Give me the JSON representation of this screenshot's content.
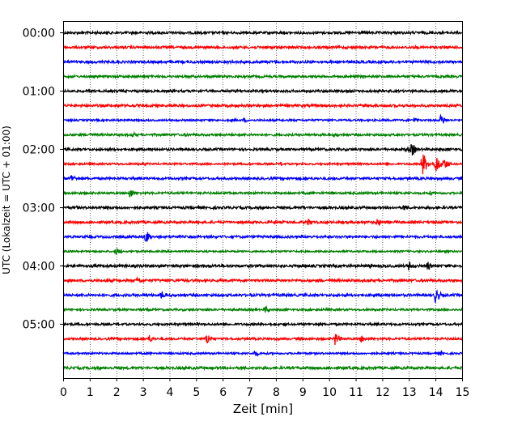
{
  "chart_data": {
    "type": "line",
    "subtype": "helicorder-seismogram",
    "title": "",
    "xlabel": "Zeit  [min]",
    "ylabel": "UTC (Lokalzeit = UTC + 01:00)",
    "xlim": [
      0,
      15
    ],
    "x_ticks": [
      "0",
      "1",
      "2",
      "3",
      "4",
      "5",
      "6",
      "7",
      "8",
      "9",
      "10",
      "11",
      "12",
      "13",
      "14",
      "15"
    ],
    "y_tick_labels": [
      "00:00",
      "01:00",
      "02:00",
      "03:00",
      "04:00",
      "05:00"
    ],
    "y_tick_rows": [
      0,
      4,
      8,
      12,
      16,
      20
    ],
    "rows_count": 24,
    "row_interval_minutes": 15,
    "grid": "vertical dotted lines at each minute",
    "trace_colors": [
      "#000000",
      "#ff0000",
      "#0000ff",
      "#008000"
    ],
    "events": [
      {
        "row": 0,
        "time": "00:00",
        "minute": 6.0,
        "amp": 0.25
      },
      {
        "row": 2,
        "time": "00:30",
        "minute": 0.3,
        "amp": 0.15
      },
      {
        "row": 5,
        "time": "01:15",
        "minute": 0.0,
        "amp": 0.0
      },
      {
        "row": 6,
        "time": "01:30",
        "minute": 6.8,
        "amp": 0.3
      },
      {
        "row": 6,
        "time": "01:30",
        "minute": 13.2,
        "amp": 0.4
      },
      {
        "row": 6,
        "time": "01:30",
        "minute": 14.2,
        "amp": 0.7
      },
      {
        "row": 7,
        "time": "01:45",
        "minute": 1.0,
        "amp": 0.3
      },
      {
        "row": 7,
        "time": "01:45",
        "minute": 2.6,
        "amp": 0.4
      },
      {
        "row": 7,
        "time": "01:45",
        "minute": 4.6,
        "amp": 0.3
      },
      {
        "row": 7,
        "time": "01:45",
        "minute": 10.2,
        "amp": 0.35
      },
      {
        "row": 8,
        "time": "02:00",
        "minute": 12.9,
        "amp": 0.45
      },
      {
        "row": 8,
        "time": "02:00",
        "minute": 13.1,
        "amp": 0.9
      },
      {
        "row": 9,
        "time": "02:15",
        "minute": 3.0,
        "amp": 0.25
      },
      {
        "row": 9,
        "time": "02:15",
        "minute": 8.2,
        "amp": 0.3
      },
      {
        "row": 9,
        "time": "02:15",
        "minute": 13.5,
        "amp": 1.6
      },
      {
        "row": 9,
        "time": "02:15",
        "minute": 14.0,
        "amp": 1.3
      },
      {
        "row": 9,
        "time": "02:15",
        "minute": 14.3,
        "amp": 0.8
      },
      {
        "row": 10,
        "time": "02:30",
        "minute": 0.3,
        "amp": 0.6
      },
      {
        "row": 11,
        "time": "02:45",
        "minute": 2.5,
        "amp": 0.7
      },
      {
        "row": 11,
        "time": "02:45",
        "minute": 13.8,
        "amp": 0.3
      },
      {
        "row": 12,
        "time": "03:00",
        "minute": 0.5,
        "amp": 0.25
      },
      {
        "row": 12,
        "time": "03:00",
        "minute": 9.0,
        "amp": 0.25
      },
      {
        "row": 12,
        "time": "03:00",
        "minute": 12.8,
        "amp": 0.45
      },
      {
        "row": 13,
        "time": "03:15",
        "minute": 9.2,
        "amp": 0.5
      },
      {
        "row": 13,
        "time": "03:15",
        "minute": 11.8,
        "amp": 0.55
      },
      {
        "row": 14,
        "time": "03:30",
        "minute": 3.1,
        "amp": 0.9
      },
      {
        "row": 14,
        "time": "03:30",
        "minute": 14.0,
        "amp": 0.25
      },
      {
        "row": 15,
        "time": "03:45",
        "minute": 2.0,
        "amp": 0.5
      },
      {
        "row": 16,
        "time": "04:00",
        "minute": 11.5,
        "amp": 0.35
      },
      {
        "row": 16,
        "time": "04:00",
        "minute": 13.0,
        "amp": 0.6
      },
      {
        "row": 16,
        "time": "04:00",
        "minute": 13.7,
        "amp": 0.55
      },
      {
        "row": 17,
        "time": "04:15",
        "minute": 2.8,
        "amp": 0.6
      },
      {
        "row": 18,
        "time": "04:30",
        "minute": 3.7,
        "amp": 0.6
      },
      {
        "row": 18,
        "time": "04:30",
        "minute": 14.0,
        "amp": 1.0
      },
      {
        "row": 19,
        "time": "04:45",
        "minute": 7.6,
        "amp": 0.5
      },
      {
        "row": 20,
        "time": "05:00",
        "minute": 8.3,
        "amp": 0.25
      },
      {
        "row": 21,
        "time": "05:15",
        "minute": 3.2,
        "amp": 0.6
      },
      {
        "row": 21,
        "time": "05:15",
        "minute": 5.4,
        "amp": 0.8
      },
      {
        "row": 21,
        "time": "05:15",
        "minute": 10.2,
        "amp": 0.9
      },
      {
        "row": 21,
        "time": "05:15",
        "minute": 11.2,
        "amp": 0.5
      },
      {
        "row": 22,
        "time": "05:30",
        "minute": 7.2,
        "amp": 0.45
      },
      {
        "row": 22,
        "time": "05:30",
        "minute": 14.2,
        "amp": 0.3
      }
    ]
  }
}
